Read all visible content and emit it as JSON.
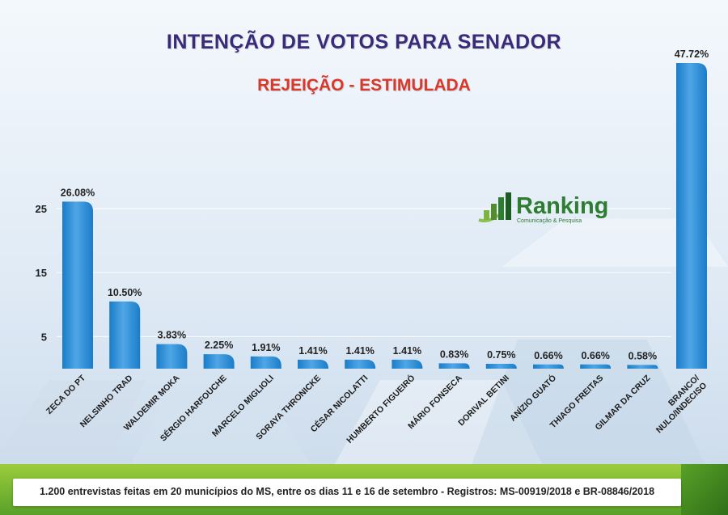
{
  "title": "INTENÇÃO DE VOTOS PARA SENADOR",
  "subtitle": "REJEIÇÃO - ESTIMULADA",
  "logo": {
    "word": "Ranking",
    "tagline": "Comunicação & Pesquisa"
  },
  "footer": "1.200 entrevistas feitas em 20 municípios do MS, entre os dias 11 e 16 de setembro - Registros:  MS-00919/2018 e BR-08846/2018",
  "colors": {
    "bar": "#1a7cc8",
    "bar_highlight": "#4fa6e6",
    "title": "#3a2a7a",
    "subtitle": "#d9392b"
  },
  "chart_data": {
    "type": "bar",
    "title": "INTENÇÃO DE VOTOS PARA SENADOR",
    "subtitle": "REJEIÇÃO - ESTIMULADA",
    "categories": [
      "ZECA DO PT",
      "NELSINHO TRAD",
      "WALDEMIR MOKA",
      "SÉRGIO HARFOUCHE",
      "MARCELO MIGLIOLI",
      "SORAYA THRONICKE",
      "CÉSAR NICOLATTI",
      "HUMBERTO FIGUEIRÓ",
      "MÁRIO FONSECA",
      "DORIVAL BETINI",
      "ANÍZIO GUATÓ",
      "THIAGO FREITAS",
      "GILMAR DA CRUZ",
      "BRANCO/\nNULO/INDECISO"
    ],
    "values": [
      26.08,
      10.5,
      3.83,
      2.25,
      1.91,
      1.41,
      1.41,
      1.41,
      0.83,
      0.75,
      0.66,
      0.66,
      0.58,
      47.72
    ],
    "value_labels": [
      "26.08%",
      "10.50%",
      "3.83%",
      "2.25%",
      "1.91%",
      "1.41%",
      "1.41%",
      "1.41%",
      "0.83%",
      "0.75%",
      "0.66%",
      "0.66%",
      "0.58%",
      "47.72%"
    ],
    "yticks": [
      5,
      15,
      25
    ],
    "ylim": [
      0,
      47.72
    ],
    "grid": true,
    "xlabel": "",
    "ylabel": ""
  }
}
